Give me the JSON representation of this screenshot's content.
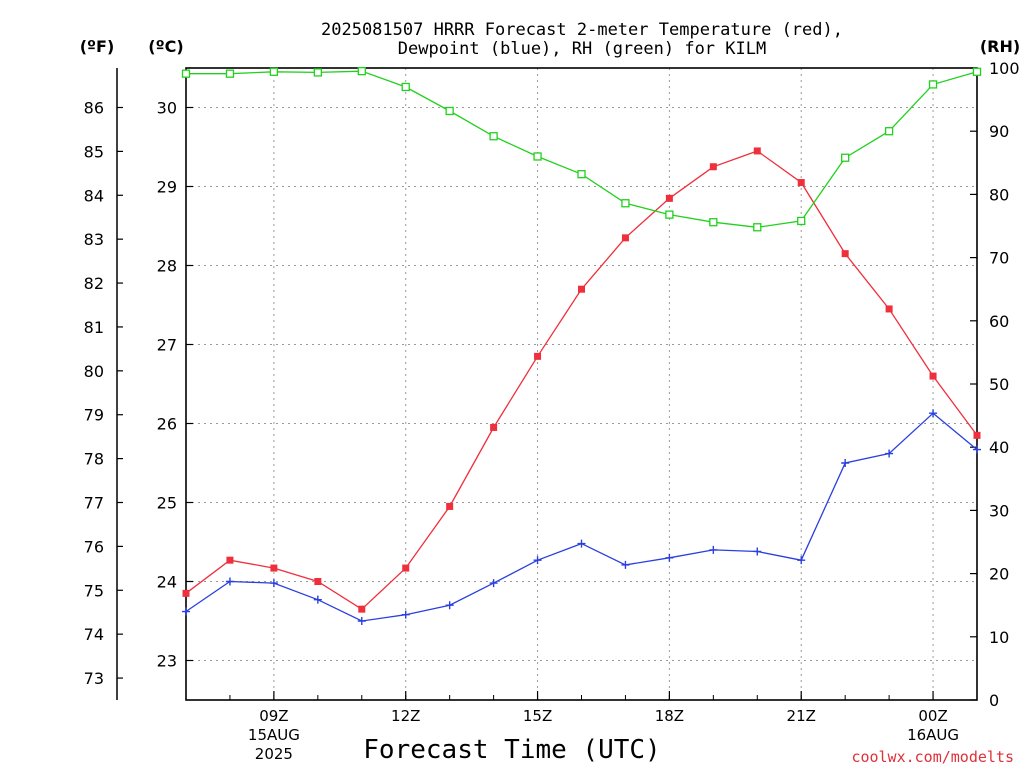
{
  "chart_data": {
    "type": "line",
    "title_line1": "2025081507 HRRR Forecast 2-meter Temperature (red),",
    "title_line2": "Dewpoint (blue), RH (green) for KILM",
    "xlabel": "Forecast Time (UTC)",
    "credit": "coolwx.com/modelts",
    "axis_units": {
      "fahrenheit": "(ºF)",
      "celsius": "(ºC)",
      "rh": "(RH)"
    },
    "x_hours_utc": [
      7,
      8,
      9,
      10,
      11,
      12,
      13,
      14,
      15,
      16,
      17,
      18,
      19,
      20,
      21,
      22,
      23,
      24,
      25
    ],
    "xlim": [
      7,
      25
    ],
    "x_ticks": [
      {
        "hour": 9,
        "label": "09Z",
        "sub1": "15AUG",
        "sub2": "2025"
      },
      {
        "hour": 12,
        "label": "12Z",
        "sub1": "",
        "sub2": ""
      },
      {
        "hour": 15,
        "label": "15Z",
        "sub1": "",
        "sub2": ""
      },
      {
        "hour": 18,
        "label": "18Z",
        "sub1": "",
        "sub2": ""
      },
      {
        "hour": 21,
        "label": "21Z",
        "sub1": "",
        "sub2": ""
      },
      {
        "hour": 24,
        "label": "00Z",
        "sub1": "16AUG",
        "sub2": ""
      }
    ],
    "celsius_axis": {
      "ylim": [
        22.5,
        30.5
      ],
      "ticks": [
        23,
        24,
        25,
        26,
        27,
        28,
        29,
        30
      ]
    },
    "fahrenheit_axis": {
      "ticks": [
        73,
        74,
        75,
        76,
        77,
        78,
        79,
        80,
        81,
        82,
        83,
        84,
        85,
        86
      ]
    },
    "rh_axis": {
      "ylim": [
        0,
        100
      ],
      "ticks": [
        0,
        10,
        20,
        30,
        40,
        50,
        60,
        70,
        80,
        90,
        100
      ]
    },
    "grid": true,
    "series": [
      {
        "key": "temperature",
        "axis": "celsius",
        "color": "#ef2f3c",
        "marker": "filled-square",
        "values": [
          23.85,
          24.27,
          24.17,
          24.0,
          23.65,
          24.17,
          24.95,
          25.95,
          26.85,
          27.7,
          28.35,
          28.85,
          29.25,
          29.45,
          29.05,
          28.15,
          27.45,
          26.6,
          25.85
        ]
      },
      {
        "key": "dewpoint",
        "axis": "celsius",
        "color": "#2a3fe0",
        "marker": "plus",
        "values": [
          23.62,
          24.0,
          23.98,
          23.77,
          23.5,
          23.58,
          23.7,
          23.98,
          24.27,
          24.48,
          24.21,
          24.3,
          24.4,
          24.38,
          24.27,
          25.5,
          25.62,
          26.13,
          25.67
        ]
      },
      {
        "key": "rh",
        "axis": "rh",
        "color": "#22d11e",
        "marker": "open-square",
        "values": [
          99.1,
          99.1,
          99.4,
          99.3,
          99.5,
          97.0,
          93.2,
          89.2,
          86.0,
          83.2,
          78.6,
          76.8,
          75.6,
          74.8,
          75.8,
          85.8,
          90.0,
          97.4,
          99.4
        ]
      }
    ]
  }
}
